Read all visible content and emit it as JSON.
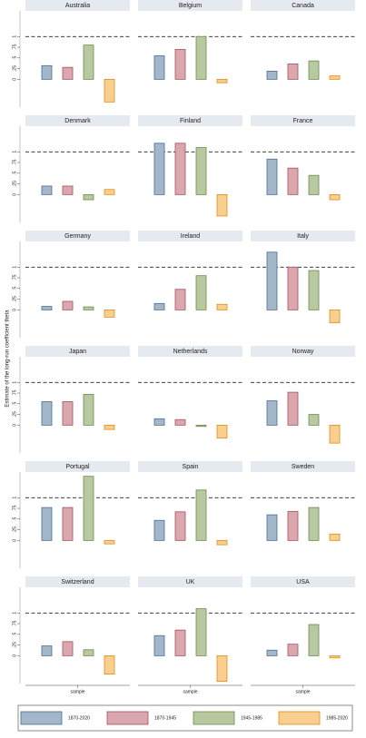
{
  "chart_data": {
    "type": "bar",
    "ylabel": "Estimate of the long-run coefficient theta",
    "xlabel": "sample",
    "ylim": [
      -0.65,
      1.6
    ],
    "yticks": [
      0,
      {
        "value": 0.25,
        "label": ".25"
      },
      {
        "value": 0.5,
        "label": ".5"
      },
      {
        "value": 0.75,
        "label": ".75"
      },
      1
    ],
    "reference_line": 1,
    "series": [
      {
        "name": "1870-2020",
        "color": "#a3b7cb",
        "edge": "#4d6c8c"
      },
      {
        "name": "1870-1945",
        "color": "#dba7ae",
        "edge": "#a6525e"
      },
      {
        "name": "1945-1985",
        "color": "#b8c9a1",
        "edge": "#6c8a4c"
      },
      {
        "name": "1985-2020",
        "color": "#f9cf90",
        "edge": "#e08c17"
      }
    ],
    "panels": [
      {
        "title": "Australia",
        "values": [
          0.32,
          0.28,
          0.8,
          -0.53
        ]
      },
      {
        "title": "Belgium",
        "values": [
          0.55,
          0.7,
          1.0,
          -0.08
        ]
      },
      {
        "title": "Canada",
        "values": [
          0.19,
          0.36,
          0.43,
          0.08
        ]
      },
      {
        "title": "Denmark",
        "values": [
          0.2,
          0.2,
          -0.12,
          0.12
        ]
      },
      {
        "title": "Finland",
        "values": [
          1.2,
          1.2,
          1.1,
          -0.5
        ]
      },
      {
        "title": "France",
        "values": [
          0.83,
          0.62,
          0.45,
          -0.12
        ]
      },
      {
        "title": "Germany",
        "values": [
          0.08,
          0.2,
          0.07,
          -0.17
        ]
      },
      {
        "title": "Ireland",
        "values": [
          0.15,
          0.48,
          0.8,
          0.13
        ]
      },
      {
        "title": "Italy",
        "values": [
          1.35,
          1.0,
          0.92,
          -0.3
        ]
      },
      {
        "title": "Japan",
        "values": [
          0.55,
          0.55,
          0.72,
          -0.1
        ]
      },
      {
        "title": "Netherlands",
        "values": [
          0.15,
          0.13,
          -0.03,
          -0.3
        ]
      },
      {
        "title": "Norway",
        "values": [
          0.57,
          0.77,
          0.25,
          -0.42
        ]
      },
      {
        "title": "Portugal",
        "values": [
          0.77,
          0.77,
          1.5,
          -0.08
        ]
      },
      {
        "title": "Spain",
        "values": [
          0.47,
          0.67,
          1.18,
          -0.1
        ]
      },
      {
        "title": "Sweden",
        "values": [
          0.6,
          0.68,
          0.77,
          0.15
        ]
      },
      {
        "title": "Switzerland",
        "values": [
          0.23,
          0.33,
          0.14,
          -0.43
        ]
      },
      {
        "title": "UK",
        "values": [
          0.47,
          0.6,
          1.1,
          -0.6
        ]
      },
      {
        "title": "USA",
        "values": [
          0.13,
          0.27,
          0.73,
          -0.05
        ]
      }
    ]
  }
}
